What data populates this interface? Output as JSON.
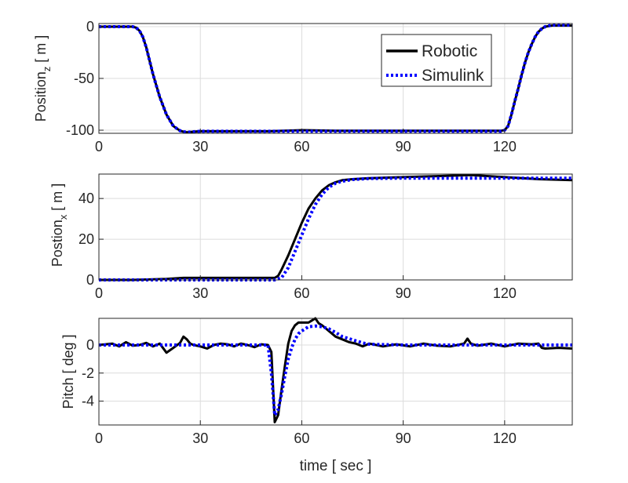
{
  "chart_data": [
    {
      "type": "line",
      "ylabel": "Position",
      "ylabel_sub": "z",
      "ylabel_unit": " [ m ]",
      "xlabel": "",
      "xlim": [
        0,
        140
      ],
      "ylim": [
        -103,
        3
      ],
      "xticks": [
        0,
        30,
        60,
        90,
        120
      ],
      "yticks": [
        0,
        -50,
        -100
      ],
      "grid": true,
      "legend": {
        "placement": "top-right",
        "entries": [
          "Robotic",
          "Simulink"
        ]
      },
      "series": [
        {
          "name": "Robotic",
          "style": "solid",
          "color": "#000000",
          "x": [
            0,
            10,
            11,
            12,
            13,
            14,
            15,
            16,
            18,
            20,
            22,
            24,
            25,
            26,
            28,
            30,
            40,
            50,
            60,
            70,
            80,
            90,
            100,
            110,
            119,
            120,
            121,
            122,
            123,
            124,
            125,
            126,
            127,
            128,
            129,
            130,
            131,
            132,
            134,
            136,
            140
          ],
          "y": [
            0,
            0,
            -1,
            -4,
            -10,
            -20,
            -33,
            -46,
            -68,
            -85,
            -96,
            -100.5,
            -101.5,
            -102,
            -101.5,
            -101,
            -101,
            -101,
            -100,
            -100.5,
            -100.5,
            -100.5,
            -100.5,
            -100.5,
            -100.5,
            -100,
            -96,
            -85,
            -72,
            -60,
            -47,
            -35,
            -25,
            -17,
            -10,
            -5,
            -2,
            0,
            1,
            1,
            1
          ]
        },
        {
          "name": "Simulink",
          "style": "dotted",
          "color": "#0000ff",
          "x": [
            0,
            10,
            11,
            12,
            13,
            14,
            15,
            16,
            18,
            20,
            22,
            24,
            25,
            26,
            28,
            30,
            40,
            50,
            60,
            70,
            80,
            90,
            100,
            110,
            119,
            120,
            121,
            122,
            123,
            124,
            125,
            126,
            127,
            128,
            129,
            130,
            131,
            132,
            134,
            136,
            140
          ],
          "y": [
            0,
            0,
            -1,
            -4,
            -10,
            -20,
            -33,
            -46,
            -68,
            -85,
            -96,
            -100.5,
            -101.5,
            -102,
            -101.5,
            -101,
            -101,
            -101,
            -101,
            -101,
            -101,
            -101,
            -101,
            -101,
            -101,
            -100,
            -96,
            -85,
            -72,
            -60,
            -47,
            -35,
            -25,
            -17,
            -10,
            -5,
            -2,
            0,
            1.5,
            1.5,
            1.5
          ]
        }
      ]
    },
    {
      "type": "line",
      "ylabel": "Postion",
      "ylabel_sub": "x",
      "ylabel_unit": " [ m ]",
      "xlabel": "",
      "xlim": [
        0,
        140
      ],
      "ylim": [
        0,
        52
      ],
      "xticks": [
        0,
        30,
        60,
        90,
        120
      ],
      "yticks": [
        0,
        20,
        40
      ],
      "grid": true,
      "series": [
        {
          "name": "Robotic",
          "style": "solid",
          "color": "#000000",
          "x": [
            0,
            10,
            20,
            25,
            30,
            40,
            50,
            52,
            53,
            54,
            56,
            58,
            60,
            62,
            64,
            66,
            68,
            70,
            72,
            75,
            80,
            90,
            100,
            110,
            120,
            130,
            140
          ],
          "y": [
            0,
            0,
            0.5,
            1,
            1,
            1,
            1,
            1,
            2,
            5,
            12,
            20,
            28,
            35,
            40,
            44,
            46.5,
            48,
            49,
            49.5,
            50,
            50.5,
            51,
            51.5,
            50.5,
            49.5,
            49
          ]
        },
        {
          "name": "Simulink",
          "style": "dotted",
          "color": "#0000ff",
          "x": [
            0,
            10,
            20,
            30,
            40,
            50,
            52,
            54,
            56,
            58,
            60,
            62,
            64,
            66,
            68,
            70,
            72,
            75,
            80,
            90,
            100,
            110,
            120,
            130,
            140
          ],
          "y": [
            0,
            0,
            0,
            0,
            0,
            0,
            0,
            1,
            6,
            14,
            22,
            30,
            37,
            42,
            45.5,
            47.5,
            48.5,
            49.3,
            49.8,
            50,
            50,
            50,
            50,
            50,
            50
          ]
        }
      ]
    },
    {
      "type": "line",
      "ylabel": "Pitch [ deg ]",
      "xlabel": "time [ sec ]",
      "xlim": [
        0,
        140
      ],
      "ylim": [
        -5.7,
        1.9
      ],
      "xticks": [
        0,
        30,
        60,
        90,
        120
      ],
      "yticks": [
        0,
        -2,
        -4
      ],
      "grid": true,
      "series": [
        {
          "name": "Robotic",
          "style": "solid",
          "color": "#000000",
          "x": [
            0,
            2,
            4,
            6,
            8,
            10,
            12,
            14,
            16,
            18,
            20,
            22,
            24,
            25,
            26,
            27,
            28,
            30,
            32,
            34,
            36,
            38,
            40,
            42,
            44,
            46,
            48,
            50,
            51,
            52,
            53,
            54,
            55,
            56,
            57,
            58,
            59,
            60,
            61,
            62,
            63,
            64,
            65,
            66,
            68,
            70,
            72,
            74,
            76,
            78,
            80,
            84,
            88,
            92,
            96,
            100,
            104,
            108,
            109,
            110,
            112,
            116,
            120,
            124,
            128,
            130,
            131,
            132,
            136,
            140
          ],
          "y": [
            0,
            0.05,
            0.1,
            -0.1,
            0.2,
            -0.05,
            0,
            0.15,
            -0.1,
            0.1,
            -0.55,
            -0.2,
            0.15,
            0.6,
            0.4,
            0.1,
            0,
            -0.1,
            -0.25,
            0,
            0.1,
            0.05,
            -0.1,
            0.1,
            0,
            -0.15,
            0.05,
            0,
            -0.5,
            -5.5,
            -5,
            -3.2,
            -1.5,
            0.1,
            1,
            1.4,
            1.6,
            1.6,
            1.6,
            1.6,
            1.75,
            1.9,
            1.55,
            1.4,
            1,
            0.6,
            0.4,
            0.2,
            0.1,
            -0.1,
            0.1,
            -0.1,
            0.05,
            -0.1,
            0.1,
            -0.05,
            -0.1,
            0.1,
            0.45,
            0.1,
            -0.05,
            0.1,
            -0.1,
            0.1,
            0.05,
            0.1,
            -0.2,
            -0.25,
            -0.2,
            -0.25
          ]
        },
        {
          "name": "Simulink",
          "style": "dotted",
          "color": "#0000ff",
          "x": [
            0,
            10,
            20,
            30,
            40,
            50,
            51,
            52,
            53,
            54,
            55,
            56,
            57,
            58,
            59,
            60,
            62,
            64,
            66,
            68,
            70,
            72,
            74,
            76,
            78,
            80,
            90,
            100,
            110,
            120,
            130,
            140
          ],
          "y": [
            0,
            0,
            0,
            0,
            0,
            0,
            -2,
            -5,
            -4.6,
            -3.5,
            -2.2,
            -1,
            -0.2,
            0.4,
            0.8,
            1,
            1.3,
            1.35,
            1.3,
            1.15,
            0.9,
            0.6,
            0.45,
            0.3,
            0.15,
            0.05,
            0,
            0,
            0,
            0,
            0,
            0
          ]
        }
      ]
    }
  ]
}
